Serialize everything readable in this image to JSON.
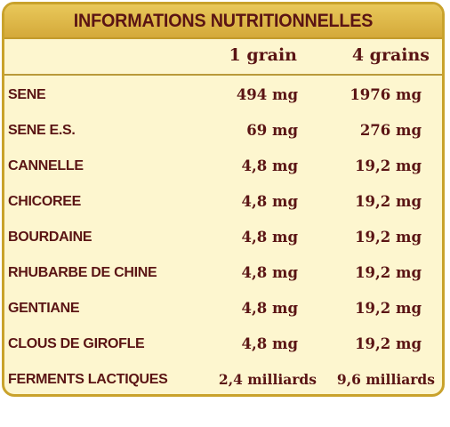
{
  "title": "INFORMATIONS NUTRITIONNELLES",
  "columns": [
    "1 grain",
    "4 grains"
  ],
  "rows": [
    {
      "name": "SENE",
      "v1": "494 mg",
      "v2": "1976 mg"
    },
    {
      "name": "SENE E.S.",
      "v1": "69 mg",
      "v2": "276 mg"
    },
    {
      "name": "CANNELLE",
      "v1": "4,8 mg",
      "v2": "19,2 mg"
    },
    {
      "name": "CHICOREE",
      "v1": "4,8 mg",
      "v2": "19,2 mg"
    },
    {
      "name": "BOURDAINE",
      "v1": "4,8 mg",
      "v2": "19,2 mg"
    },
    {
      "name": "RHUBARBE DE CHINE",
      "v1": "4,8 mg",
      "v2": "19,2 mg"
    },
    {
      "name": "GENTIANE",
      "v1": "4,8 mg",
      "v2": "19,2 mg"
    },
    {
      "name": "CLOUS DE GIROFLE",
      "v1": "4,8 mg",
      "v2": "19,2 mg"
    },
    {
      "name": "FERMENTS LACTIQUES",
      "v1": "2,4 milliards",
      "v2": "9,6 milliards"
    }
  ],
  "colors": {
    "text": "#5a1414",
    "panel_background": "#fdf6cf",
    "title_bar": "#d9b044",
    "border": "#c9a22c"
  }
}
